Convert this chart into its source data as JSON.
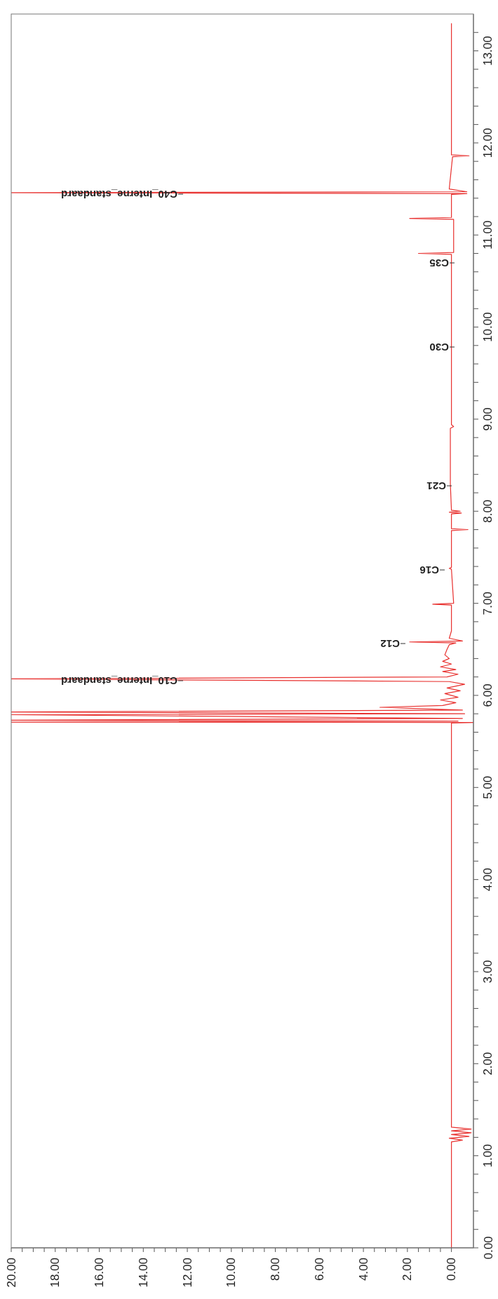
{
  "chart_data": {
    "type": "line",
    "orientation": "horizontal",
    "xlim": [
      20,
      -1
    ],
    "ylim": [
      0,
      13.4
    ],
    "xticks": [
      {
        "value": 20,
        "label": "20.00"
      },
      {
        "value": 19.5,
        "label": null
      },
      {
        "value": 19,
        "label": null
      },
      {
        "value": 18.5,
        "label": null
      },
      {
        "value": 18,
        "label": "18.00"
      },
      {
        "value": 17.5,
        "label": null
      },
      {
        "value": 17,
        "label": null
      },
      {
        "value": 16.5,
        "label": null
      },
      {
        "value": 16,
        "label": "16.00"
      },
      {
        "value": 15.5,
        "label": null
      },
      {
        "value": 15,
        "label": null
      },
      {
        "value": 14.5,
        "label": null
      },
      {
        "value": 14,
        "label": "14.00"
      },
      {
        "value": 13.5,
        "label": null
      },
      {
        "value": 13,
        "label": null
      },
      {
        "value": 12.5,
        "label": null
      },
      {
        "value": 12,
        "label": "12.00"
      },
      {
        "value": 11.5,
        "label": null
      },
      {
        "value": 11,
        "label": null
      },
      {
        "value": 10.5,
        "label": null
      },
      {
        "value": 10,
        "label": "10.00"
      },
      {
        "value": 9.5,
        "label": null
      },
      {
        "value": 9,
        "label": null
      },
      {
        "value": 8.5,
        "label": null
      },
      {
        "value": 8,
        "label": "8.00"
      },
      {
        "value": 7.5,
        "label": null
      },
      {
        "value": 7,
        "label": null
      },
      {
        "value": 6.5,
        "label": null
      },
      {
        "value": 6,
        "label": "6.00"
      },
      {
        "value": 5.5,
        "label": null
      },
      {
        "value": 5,
        "label": null
      },
      {
        "value": 4.5,
        "label": null
      },
      {
        "value": 4,
        "label": "4.00"
      },
      {
        "value": 3.5,
        "label": null
      },
      {
        "value": 3,
        "label": null
      },
      {
        "value": 2.5,
        "label": null
      },
      {
        "value": 2,
        "label": "2.00"
      },
      {
        "value": 1.5,
        "label": null
      },
      {
        "value": 1,
        "label": null
      },
      {
        "value": 0.5,
        "label": null
      },
      {
        "value": 0,
        "label": "0.00"
      }
    ],
    "yticks": [
      {
        "value": 0,
        "label": "0.00"
      },
      {
        "value": 0.2,
        "label": null
      },
      {
        "value": 0.4,
        "label": null
      },
      {
        "value": 0.6,
        "label": null
      },
      {
        "value": 0.8,
        "label": null
      },
      {
        "value": 1,
        "label": "1.00"
      },
      {
        "value": 1.2,
        "label": null
      },
      {
        "value": 1.4,
        "label": null
      },
      {
        "value": 1.6,
        "label": null
      },
      {
        "value": 1.8,
        "label": null
      },
      {
        "value": 2,
        "label": "2.00"
      },
      {
        "value": 2.2,
        "label": null
      },
      {
        "value": 2.4,
        "label": null
      },
      {
        "value": 2.6,
        "label": null
      },
      {
        "value": 2.8,
        "label": null
      },
      {
        "value": 3,
        "label": "3.00"
      },
      {
        "value": 3.2,
        "label": null
      },
      {
        "value": 3.4,
        "label": null
      },
      {
        "value": 3.6,
        "label": null
      },
      {
        "value": 3.8,
        "label": null
      },
      {
        "value": 4,
        "label": "4.00"
      },
      {
        "value": 4.2,
        "label": null
      },
      {
        "value": 4.4,
        "label": null
      },
      {
        "value": 4.6,
        "label": null
      },
      {
        "value": 4.8,
        "label": null
      },
      {
        "value": 5,
        "label": "5.00"
      },
      {
        "value": 5.2,
        "label": null
      },
      {
        "value": 5.4,
        "label": null
      },
      {
        "value": 5.6,
        "label": null
      },
      {
        "value": 5.8,
        "label": null
      },
      {
        "value": 6,
        "label": "6.00"
      },
      {
        "value": 6.2,
        "label": null
      },
      {
        "value": 6.4,
        "label": null
      },
      {
        "value": 6.6,
        "label": null
      },
      {
        "value": 6.8,
        "label": null
      },
      {
        "value": 7,
        "label": "7.00"
      },
      {
        "value": 7.2,
        "label": null
      },
      {
        "value": 7.4,
        "label": null
      },
      {
        "value": 7.6,
        "label": null
      },
      {
        "value": 7.8,
        "label": null
      },
      {
        "value": 8,
        "label": "8.00"
      },
      {
        "value": 8.2,
        "label": null
      },
      {
        "value": 8.4,
        "label": null
      },
      {
        "value": 8.6,
        "label": null
      },
      {
        "value": 8.8,
        "label": null
      },
      {
        "value": 9,
        "label": "9.00"
      },
      {
        "value": 9.2,
        "label": null
      },
      {
        "value": 9.4,
        "label": null
      },
      {
        "value": 9.6,
        "label": null
      },
      {
        "value": 9.8,
        "label": null
      },
      {
        "value": 10,
        "label": "10.00"
      },
      {
        "value": 10.2,
        "label": null
      },
      {
        "value": 10.4,
        "label": null
      },
      {
        "value": 10.6,
        "label": null
      },
      {
        "value": 10.8,
        "label": null
      },
      {
        "value": 11,
        "label": "11.00"
      },
      {
        "value": 11.2,
        "label": null
      },
      {
        "value": 11.4,
        "label": null
      },
      {
        "value": 11.6,
        "label": null
      },
      {
        "value": 11.8,
        "label": null
      },
      {
        "value": 12,
        "label": "12.00"
      },
      {
        "value": 12.2,
        "label": null
      },
      {
        "value": 12.4,
        "label": null
      },
      {
        "value": 12.6,
        "label": null
      },
      {
        "value": 12.8,
        "label": null
      },
      {
        "value": 13,
        "label": "13.00"
      },
      {
        "value": 13.2,
        "label": null
      }
    ],
    "series": [
      {
        "color": "#e8312f",
        "x": [
          0,
          1.15,
          1.17,
          1.19,
          1.21,
          1.23,
          1.25,
          1.27,
          1.29,
          1.31,
          5.7,
          5.705,
          5.71,
          5.72,
          5.73,
          5.75,
          5.79,
          5.8,
          5.82,
          5.84,
          5.87,
          5.89,
          5.92,
          5.95,
          5.98,
          6.02,
          6.05,
          6.08,
          6.12,
          6.15,
          6.18,
          6.2,
          6.23,
          6.26,
          6.28,
          6.31,
          6.34,
          6.37,
          6.4,
          6.44,
          6.5,
          6.55,
          6.57,
          6.58,
          6.59,
          6.62,
          6.7,
          6.98,
          6.99,
          7,
          7.37,
          7.38,
          7.39,
          7.79,
          7.8,
          7.81,
          7.97,
          7.98,
          7.99,
          8,
          8.01,
          8.3,
          8.9,
          8.92,
          8.94,
          10.79,
          10.8,
          10.81,
          11.17,
          11.18,
          11.19,
          11.44,
          11.45,
          11.46,
          11.47,
          11.5,
          11.85,
          11.86,
          11.87,
          13.3
        ],
        "values": [
          0,
          0,
          -0.5,
          0.1,
          -0.8,
          0,
          -0.9,
          0,
          -0.9,
          0,
          0,
          -1,
          20,
          -0.3,
          20,
          -0.5,
          20,
          -0.6,
          20,
          -0.5,
          3.25,
          0.4,
          -0.2,
          0.5,
          -0.3,
          0.3,
          -0.4,
          0.2,
          -0.6,
          0.1,
          20,
          0.2,
          -0.3,
          0.4,
          -0.2,
          0.5,
          0,
          0.4,
          0.1,
          0.3,
          0.2,
          0.1,
          -0.2,
          1.9,
          -0.5,
          0.1,
          0,
          0,
          0.85,
          -0.1,
          0,
          0.1,
          0,
          0,
          -0.75,
          0,
          0,
          -0.45,
          0.1,
          -0.4,
          0,
          0.05,
          0.05,
          -0.1,
          0,
          0,
          1.5,
          -0.1,
          -0.1,
          1.9,
          0,
          0,
          -0.7,
          20,
          -0.7,
          0.1,
          -0.05,
          -0.8,
          0,
          0
        ]
      }
    ],
    "annotations": [
      "C10_Interne_standaard",
      "C12",
      "C16",
      "C21",
      "C30",
      "C35",
      "C40_Interne_standaard"
    ]
  }
}
